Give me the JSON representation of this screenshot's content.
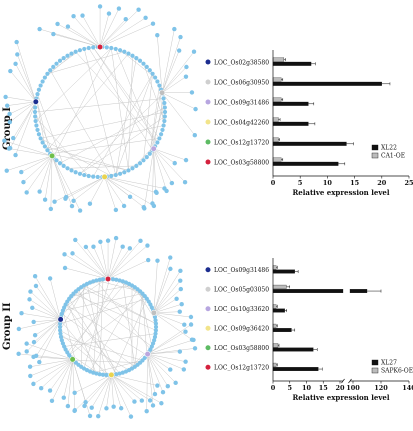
{
  "groups": [
    {
      "label": "Group I",
      "network": {
        "center_node_colors": [
          "#d4213d",
          "#1c2d8f",
          "#6fbf4d",
          "#bba7de",
          "#e9d34f",
          "#bfbfbf"
        ],
        "node_color": "#7fc3e8"
      },
      "chart_data": {
        "type": "bar",
        "orientation": "horizontal",
        "categories": [
          "LOC_Os02g38580",
          "LOC_Os06g30950",
          "LOC_Os09g31486",
          "LOC_Os04g42260",
          "LOC_Os12g13720",
          "LOC_Os03g58800"
        ],
        "marker_colors": [
          "#1c2d8f",
          "#cfcfcf",
          "#b7a6e0",
          "#f2e48a",
          "#5dbb63",
          "#d4213d"
        ],
        "series": [
          {
            "name": "XL22",
            "color": "#111111",
            "values": [
              7.0,
              20.0,
              6.5,
              6.5,
              13.5,
              12.0
            ],
            "errors": [
              0.8,
              1.5,
              1.0,
              1.2,
              1.3,
              1.2
            ]
          },
          {
            "name": "CA1-OE",
            "color": "#bcbcbc",
            "values": [
              2.0,
              1.5,
              1.5,
              1.0,
              1.0,
              1.5
            ],
            "errors": [
              0.3,
              0.3,
              0.3,
              0.3,
              0.2,
              0.3
            ]
          }
        ],
        "xlabel": "Relative expression level",
        "xlim": [
          0,
          25
        ],
        "xticks": [
          "0",
          "5",
          "10",
          "15",
          "20",
          "25"
        ],
        "legend_position": "bottom-right"
      }
    },
    {
      "label": "Group II",
      "network": {
        "center_node_colors": [
          "#d4213d",
          "#1c2d8f",
          "#6fbf4d",
          "#bba7de",
          "#e9d34f",
          "#bfbfbf"
        ],
        "node_color": "#7fc3e8"
      },
      "chart_data": {
        "type": "bar",
        "orientation": "horizontal",
        "axis_break": true,
        "categories": [
          "LOC_Os09g31486",
          "LOC_Os05g03050",
          "LOC_Os10g33620",
          "LOC_Os09g36420",
          "LOC_Os03g58800",
          "LOC_Os12g13720"
        ],
        "marker_colors": [
          "#1c2d8f",
          "#cfcfcf",
          "#b7a6e0",
          "#f2e48a",
          "#5dbb63",
          "#d4213d"
        ],
        "series": [
          {
            "name": "XL27",
            "color": "#111111",
            "values": [
              6.5,
              110,
              3.5,
              5.5,
              12.0,
              13.5
            ],
            "errors": [
              1.0,
              10,
              0.6,
              1.0,
              1.2,
              1.2
            ]
          },
          {
            "name": "SAPK6-OE",
            "color": "#bcbcbc",
            "values": [
              1.0,
              4.0,
              1.0,
              1.0,
              1.5,
              1.0
            ],
            "errors": [
              0.3,
              1.0,
              0.3,
              0.3,
              0.3,
              0.3
            ]
          }
        ],
        "xlabel": "Relative expression level",
        "xticks": [
          "0",
          "5",
          "10",
          "15",
          "20",
          "100",
          "120",
          "140"
        ],
        "legend_position": "bottom-right"
      }
    }
  ]
}
